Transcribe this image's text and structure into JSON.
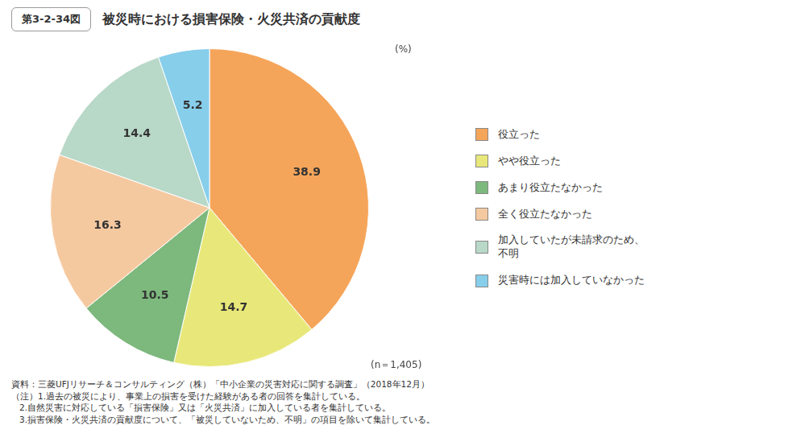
{
  "chart_data": {
    "type": "pie",
    "title": "被災時における損害保険・火災共済の貢献度",
    "categories": [
      "役立った",
      "やや役立った",
      "あまり役立たなかった",
      "全く役立たなかった",
      "加入していたが未請求のため、\n不明",
      "災害時には加入していなかった"
    ],
    "values": [
      38.9,
      14.7,
      10.5,
      16.3,
      14.4,
      5.2
    ],
    "colors": [
      "#F5A55A",
      "#E8E87A",
      "#7DB87D",
      "#F5C9A0",
      "#B8D8C8",
      "#87CEEB"
    ],
    "data_labels": true,
    "legend": "right",
    "annotations": [
      "第3-2-34図",
      "(%)",
      "(n＝1,405)",
      "資料：三菱UFJリサーチ＆コンサルティング（株）「中小企業の災害対応に関する調査」（2018年12月）",
      "（注）1.過去の被災により、事業上の損害を受けた経験がある者の回答を集計している。",
      "   2.自然災害に対応している「損害保険」又は「火災共済」に加入している者を集計している。",
      "   3.損害保険・火災共済の貢献度について、「被災していないため、不明」の項目を除いて集計している。"
    ]
  }
}
